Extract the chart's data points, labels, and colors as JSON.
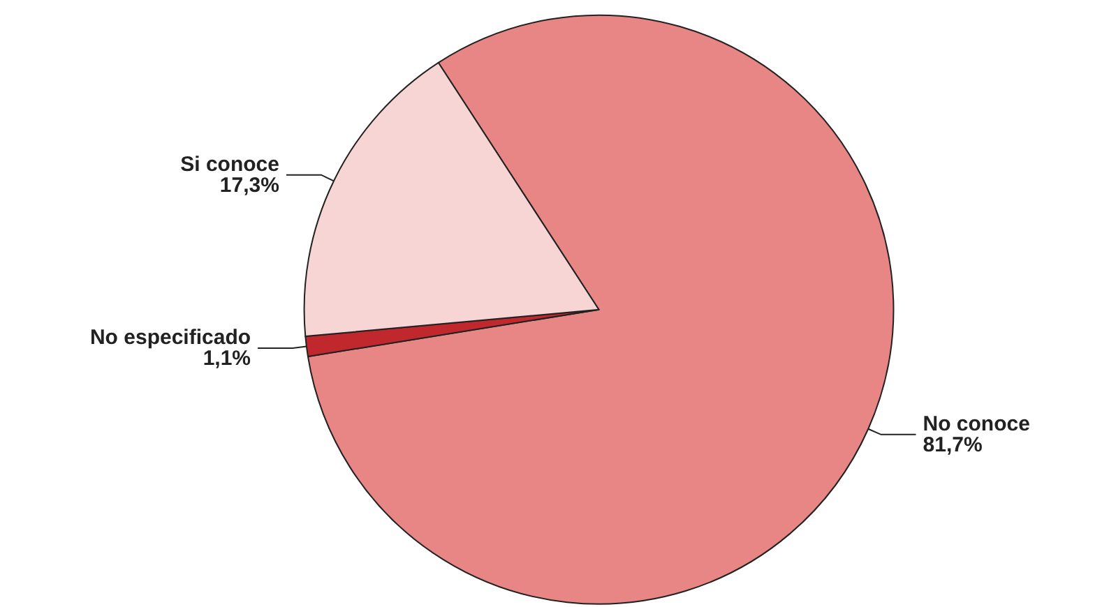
{
  "chart_data": {
    "type": "pie",
    "categories": [
      "No conoce",
      "No especificado",
      "Si conoce"
    ],
    "values": [
      81.7,
      1.1,
      17.3
    ],
    "value_labels": [
      "81,7%",
      "1,1%",
      "17,3%"
    ],
    "colors": [
      "#e88585",
      "#c0282d",
      "#f8d5d5"
    ]
  }
}
